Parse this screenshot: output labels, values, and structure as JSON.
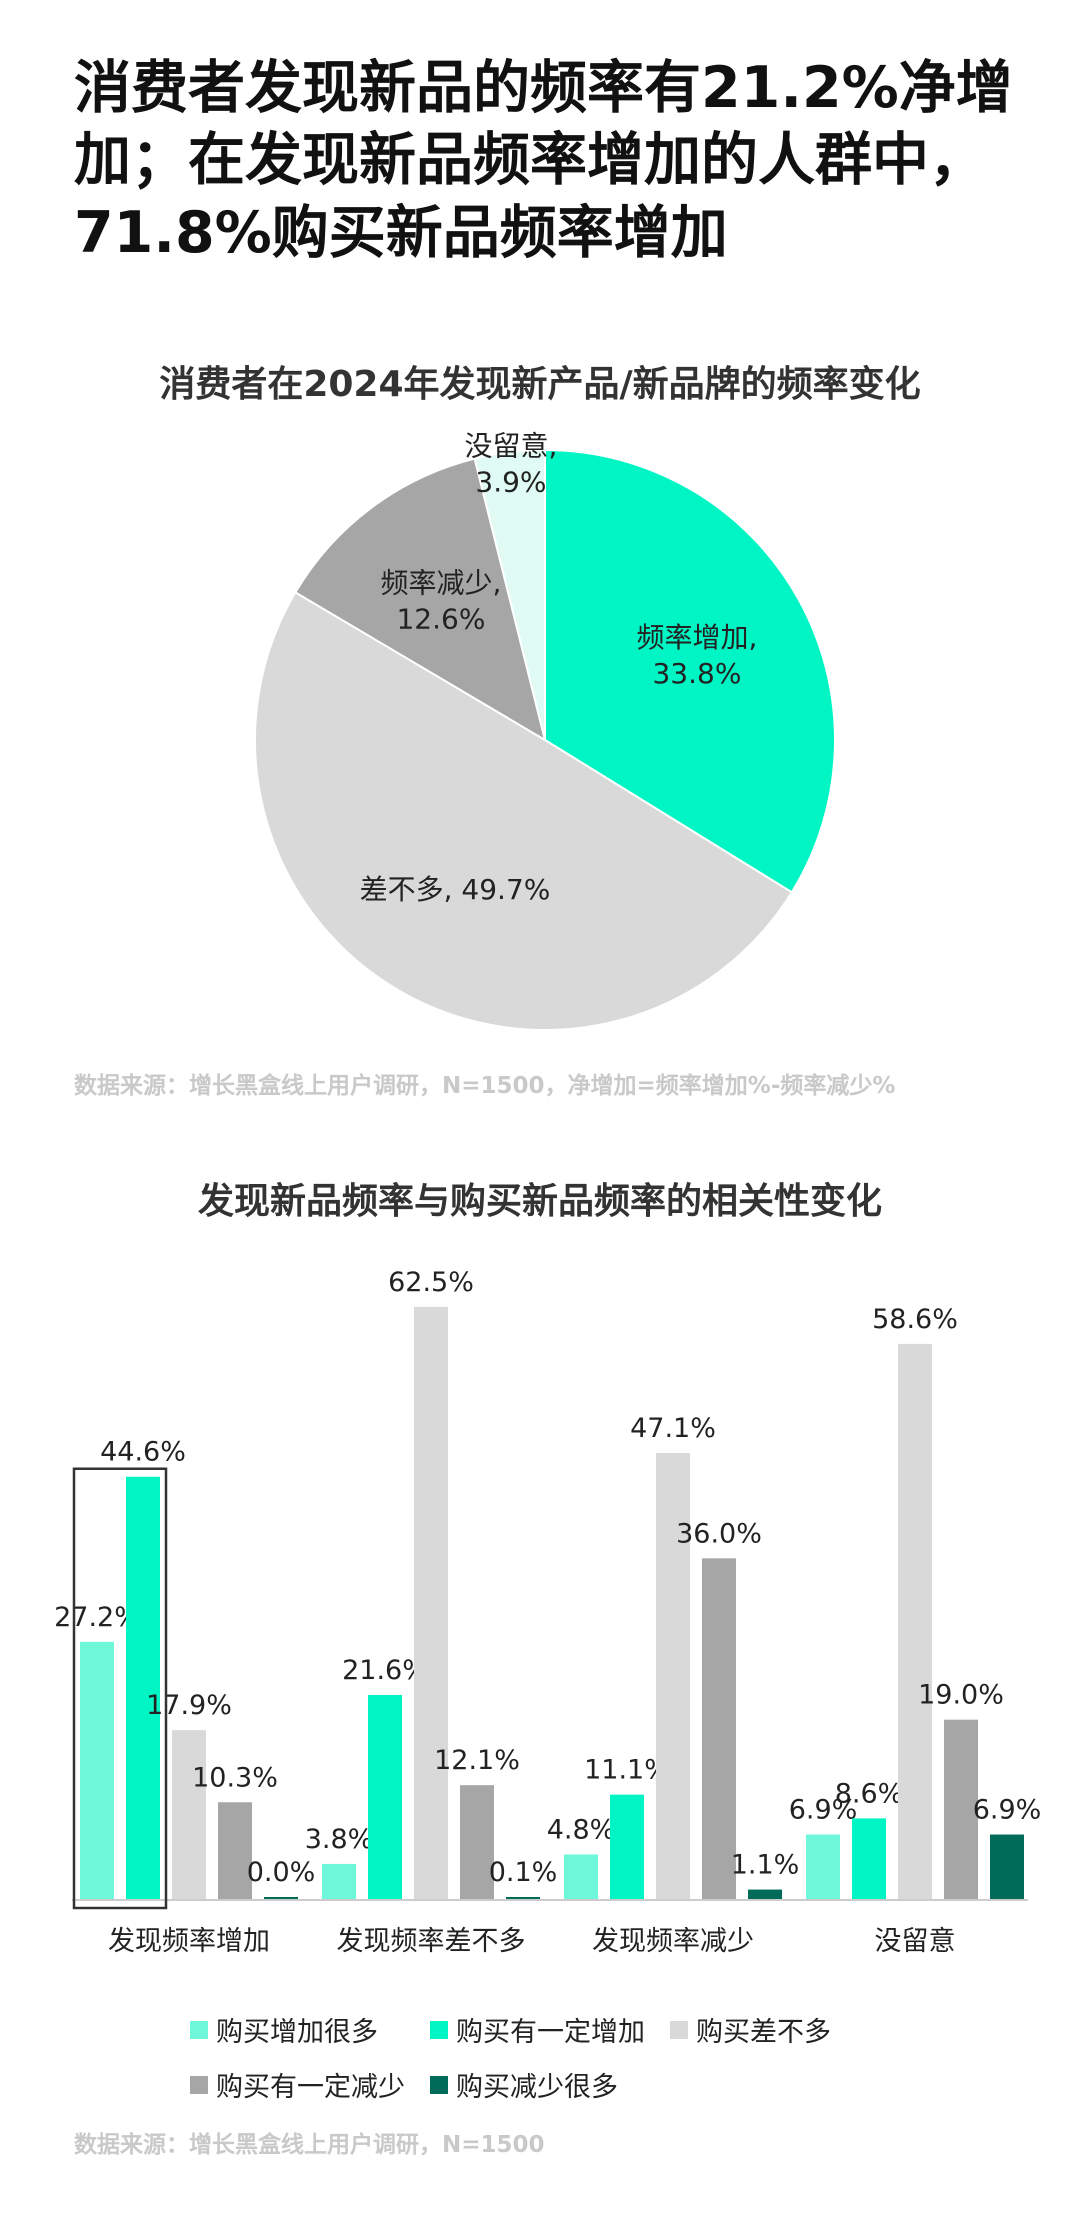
{
  "headline": "消费者发现新品的频率有21.2%净增加；在发现新品频率增加的人群中，71.8%购买新品频率增加",
  "chart_data": [
    {
      "type": "pie",
      "title": "消费者在2024年发现新产品/新品牌的频率变化",
      "slices": [
        {
          "label": "频率增加",
          "value": 33.8,
          "text": "频率增加,\n33.8%",
          "color": "#00f5c4"
        },
        {
          "label": "差不多",
          "value": 49.7,
          "text": "差不多, 49.7%",
          "color": "#d9d9d9"
        },
        {
          "label": "频率减少",
          "value": 12.6,
          "text": "频率减少,\n12.6%",
          "color": "#a6a6a6"
        },
        {
          "label": "没留意",
          "value": 3.9,
          "text": "没留意,\n3.9%",
          "color": "#e0fbf4"
        }
      ],
      "source": "数据来源：增长黑盒线上用户调研，N=1500，净增加=频率增加%-频率减少%"
    },
    {
      "type": "bar",
      "title": "发现新品频率与购买新品频率的相关性变化",
      "categories": [
        "发现频率增加",
        "发现频率差不多",
        "发现频率减少",
        "没留意"
      ],
      "series": [
        {
          "name": "购买增加很多",
          "color": "#6ef7d8",
          "values": [
            27.2,
            3.8,
            4.8,
            6.9
          ],
          "labels": [
            "27.2%",
            "3.8%",
            "4.8%",
            "6.9%"
          ]
        },
        {
          "name": "购买有一定增加",
          "color": "#00f5c4",
          "values": [
            44.6,
            21.6,
            11.1,
            8.6
          ],
          "labels": [
            "44.6%",
            "21.6%",
            "11.1%",
            "8.6%"
          ]
        },
        {
          "name": "购买差不多",
          "color": "#d9d9d9",
          "values": [
            17.9,
            62.5,
            47.1,
            58.6
          ],
          "labels": [
            "17.9%",
            "62.5%",
            "47.1%",
            "58.6%"
          ]
        },
        {
          "name": "购买有一定减少",
          "color": "#a6a6a6",
          "values": [
            10.3,
            12.1,
            36.0,
            19.0
          ],
          "labels": [
            "10.3%",
            "12.1%",
            "36.0%",
            "19.0%"
          ]
        },
        {
          "name": "购买减少很多",
          "color": "#006b58",
          "values": [
            0.0,
            0.1,
            1.1,
            6.9
          ],
          "labels": [
            "0.0%",
            "0.1%",
            "1.1%",
            "6.9%"
          ]
        }
      ],
      "highlight": "发现频率增加",
      "ylim": [
        0,
        65
      ],
      "source": "数据来源：增长黑盒线上用户调研，N=1500"
    }
  ]
}
